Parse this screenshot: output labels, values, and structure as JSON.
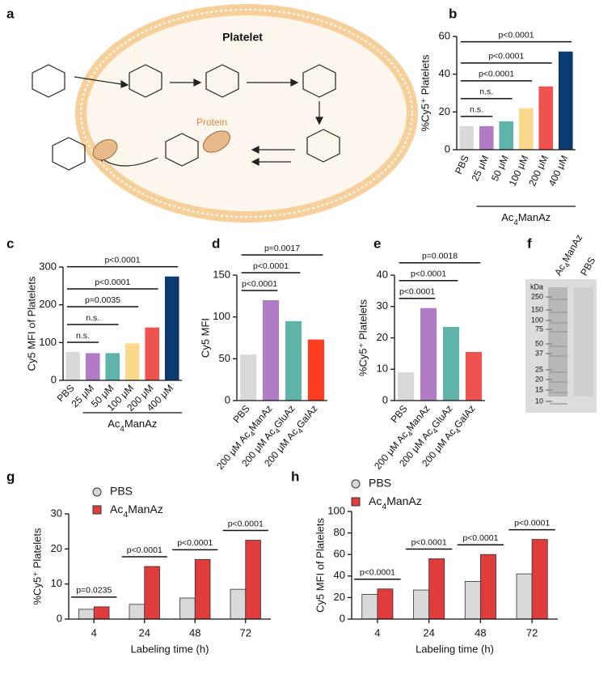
{
  "panel_labels": [
    "a",
    "b",
    "c",
    "d",
    "e",
    "f",
    "g",
    "h"
  ],
  "diagram": {
    "cell_label": "Platelet",
    "protein_label": "Protein"
  },
  "gel": {
    "unit": "kDa",
    "markers": [
      250,
      150,
      100,
      75,
      50,
      37,
      25,
      20,
      15,
      10
    ],
    "lanes": [
      "Ac4ManAz",
      "PBS"
    ]
  },
  "chart_data": [
    {
      "type": "bar",
      "ylabel": "%Cy5⁺ Platelets",
      "categories": [
        "PBS",
        "25 μM",
        "50 μM",
        "100 μM",
        "200 μM",
        "400 μM"
      ],
      "values": [
        12.5,
        12.5,
        15,
        22,
        33.5,
        52
      ],
      "colors": [
        "#d9d9d9",
        "#b07cc6",
        "#5fb3a8",
        "#fbd98c",
        "#ef5350",
        "#0b3a72"
      ],
      "ylim": [
        0,
        60
      ],
      "yticks": [
        0,
        20,
        40,
        60
      ],
      "group_label": "Ac4ManAz",
      "comparisons": [
        "n.s.",
        "n.s.",
        "p<0.0001",
        "p<0.0001",
        "p<0.0001"
      ]
    },
    {
      "type": "bar",
      "ylabel": "Cy5 MFI of Platelets",
      "categories": [
        "PBS",
        "25 μM",
        "50 μM",
        "100 μM",
        "200 μM",
        "400 μM"
      ],
      "values": [
        75,
        72,
        72,
        98,
        140,
        275
      ],
      "colors": [
        "#d9d9d9",
        "#b07cc6",
        "#5fb3a8",
        "#fbd98c",
        "#ef5350",
        "#0b3a72"
      ],
      "ylim": [
        0,
        300
      ],
      "yticks": [
        0,
        100,
        200,
        300
      ],
      "group_label": "Ac4ManAz",
      "comparisons": [
        "n.s.",
        "n.s.",
        "p=0.0035",
        "p<0.0001",
        "p<0.0001"
      ]
    },
    {
      "type": "bar",
      "ylabel": "Cy5 MFI",
      "categories": [
        "PBS",
        "200 μM Ac4ManAz",
        "200 μM Ac4GluAz",
        "200 μM Ac4GalAz"
      ],
      "values": [
        55,
        120,
        95,
        73
      ],
      "colors": [
        "#d9d9d9",
        "#b07cc6",
        "#5fb3a8",
        "#ff3b20"
      ],
      "ylim": [
        0,
        150
      ],
      "yticks": [
        0,
        50,
        100,
        150
      ],
      "comparisons": [
        "p<0.0001",
        "p<0.0001",
        "p=0.0017"
      ]
    },
    {
      "type": "bar",
      "ylabel": "%Cy5⁺ Platelets",
      "categories": [
        "PBS",
        "200 μM Ac4ManAz",
        "200 μM Ac4GluAz",
        "200 μM Ac4GalAz"
      ],
      "values": [
        9,
        29.5,
        23.5,
        15.5
      ],
      "colors": [
        "#d9d9d9",
        "#b07cc6",
        "#5fb3a8",
        "#ef5350"
      ],
      "ylim": [
        0,
        40
      ],
      "yticks": [
        0,
        10,
        20,
        30,
        40
      ],
      "comparisons": [
        "p<0.0001",
        "p<0.0001",
        "p=0.0018"
      ]
    },
    {
      "type": "grouped_bar",
      "xlabel": "Labeling time (h)",
      "ylabel": "%Cy5⁺ Platelets",
      "categories": [
        "4",
        "24",
        "48",
        "72"
      ],
      "series": [
        {
          "name": "PBS",
          "color": "#d9d9d9",
          "values": [
            2.8,
            4.2,
            6,
            8.5
          ]
        },
        {
          "name": "Ac4ManAz",
          "color": "#e03c3c",
          "values": [
            3.5,
            15,
            17,
            22.5
          ]
        }
      ],
      "ylim": [
        0,
        30
      ],
      "yticks": [
        0,
        10,
        20,
        30
      ],
      "comparisons": [
        "p=0.0235",
        "p<0.0001",
        "p<0.0001",
        "p<0.0001"
      ]
    },
    {
      "type": "grouped_bar",
      "xlabel": "Labeling time (h)",
      "ylabel": "Cy5 MFI of Platelets",
      "categories": [
        "4",
        "24",
        "48",
        "72"
      ],
      "series": [
        {
          "name": "PBS",
          "color": "#d9d9d9",
          "values": [
            23,
            27,
            35,
            42
          ]
        },
        {
          "name": "Ac4ManAz",
          "color": "#e03c3c",
          "values": [
            28,
            56,
            60,
            74
          ]
        }
      ],
      "ylim": [
        0,
        100
      ],
      "yticks": [
        0,
        20,
        40,
        60,
        80,
        100
      ],
      "comparisons": [
        "p<0.0001",
        "p<0.0001",
        "p<0.0001",
        "p<0.0001"
      ]
    }
  ]
}
